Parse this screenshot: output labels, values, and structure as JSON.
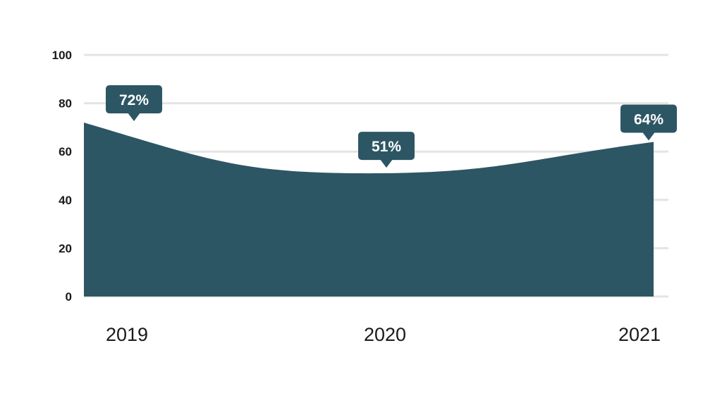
{
  "chart_data": {
    "type": "area",
    "title": "",
    "xlabel": "",
    "ylabel": "",
    "categories": [
      "2019",
      "2020",
      "2021"
    ],
    "values": [
      72,
      51,
      64
    ],
    "data_labels": [
      "72%",
      "51%",
      "64%"
    ],
    "y_ticks": [
      "0",
      "20",
      "40",
      "60",
      "80",
      "100"
    ],
    "ylim": [
      0,
      100
    ],
    "grid": true,
    "legend": "none",
    "colors": {
      "area": "#2d5664",
      "label_bubble": "#2d5664",
      "label_text": "#ffffff",
      "grid": "#e4e4e4",
      "axis_text": "#1a1a1a"
    }
  }
}
